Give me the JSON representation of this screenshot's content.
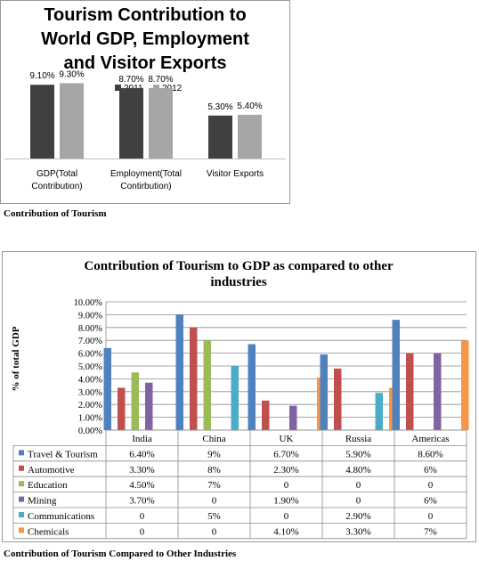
{
  "captions": {
    "top": "Contribution of Tourism",
    "bottom": "Contribution of Tourism Compared to Other Industries"
  },
  "chart_data": [
    {
      "type": "bar",
      "title": "Tourism Contribution to World GDP, Employment and Visitor Exports",
      "title_lines": [
        "Tourism Contribution to",
        "World GDP, Employment",
        "and Visitor Exports"
      ],
      "categories": [
        "GDP(Total Contribution)",
        "Employment(Total Contirbution)",
        "Visitor Exports"
      ],
      "category_lines": [
        [
          "GDP(Total",
          "Contribution)"
        ],
        [
          "Employment(Total",
          "Contirbution)"
        ],
        [
          "Visitor Exports"
        ]
      ],
      "series": [
        {
          "name": "2011",
          "values": [
            9.1,
            8.7,
            5.3
          ],
          "labels": [
            "9.10%",
            "8.70%",
            "5.30%"
          ],
          "color": "#404040"
        },
        {
          "name": "2012",
          "values": [
            9.3,
            8.7,
            5.4
          ],
          "labels": [
            "9.30%",
            "8.70%",
            "5.40%"
          ],
          "color": "#a6a6a6"
        }
      ],
      "legend_position": "top",
      "ylim": [
        0,
        10
      ]
    },
    {
      "type": "bar",
      "title": "Contribution of Tourism to GDP as compared to other industries",
      "title_lines": [
        "Contribution of Tourism to GDP as compared to other",
        "industries"
      ],
      "ylabel": "% of total GDP",
      "categories": [
        "India",
        "China",
        "UK",
        "Russia",
        "Americas"
      ],
      "y_ticks": [
        "0.00%",
        "1.00%",
        "2.00%",
        "3.00%",
        "4.00%",
        "5.00%",
        "6.00%",
        "7.00%",
        "8.00%",
        "9.00%",
        "10.00%"
      ],
      "ylim": [
        0,
        10
      ],
      "grid": true,
      "legend_position": "bottom-table",
      "series": [
        {
          "name": "Travel & Tourism",
          "values": [
            6.4,
            9,
            6.7,
            5.9,
            8.6
          ],
          "labels": [
            "6.40%",
            "9%",
            "6.70%",
            "5.90%",
            "8.60%"
          ],
          "color": "#4f81bd"
        },
        {
          "name": "Automotive",
          "values": [
            3.3,
            8,
            2.3,
            4.8,
            6
          ],
          "labels": [
            "3.30%",
            "8%",
            "2.30%",
            "4.80%",
            "6%"
          ],
          "color": "#c0504d"
        },
        {
          "name": "Education",
          "values": [
            4.5,
            7,
            0,
            0,
            0
          ],
          "labels": [
            "4.50%",
            "7%",
            "0",
            "0",
            "0"
          ],
          "color": "#9bbb59"
        },
        {
          "name": "Mining",
          "values": [
            3.7,
            0,
            1.9,
            0,
            6
          ],
          "labels": [
            "3.70%",
            "0",
            "1.90%",
            "0",
            "6%"
          ],
          "color": "#8064a2"
        },
        {
          "name": "Communications",
          "values": [
            0,
            5,
            0,
            2.9,
            0
          ],
          "labels": [
            "0",
            "5%",
            "0",
            "2.90%",
            "0"
          ],
          "color": "#4bacc6"
        },
        {
          "name": "Chemicals",
          "values": [
            0,
            0,
            4.1,
            3.3,
            7
          ],
          "labels": [
            "0",
            "0",
            "4.10%",
            "3.30%",
            "7%"
          ],
          "color": "#f79646"
        }
      ]
    }
  ]
}
